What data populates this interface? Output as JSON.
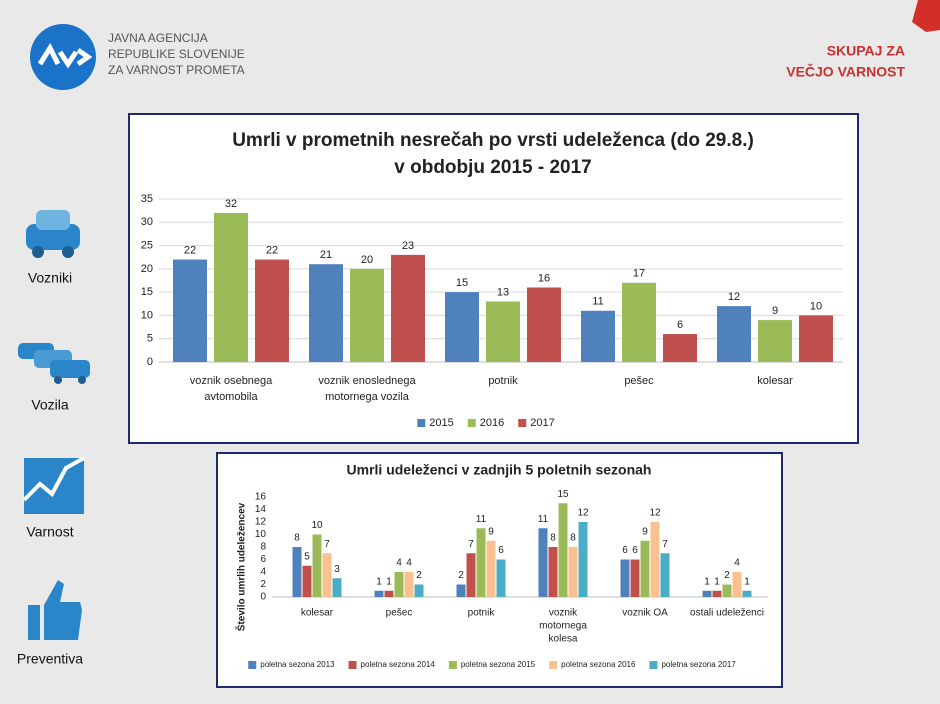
{
  "header": {
    "agency": [
      "JAVNA AGENCIJA",
      "REPUBLIKE SLOVENIJE",
      "ZA VARNOST PROMETA"
    ],
    "slogan": [
      "SKUPAJ ZA",
      "VEČJO VARNOST"
    ]
  },
  "sidebar": [
    "Vozniki",
    "Vozila",
    "Varnost",
    "Preventiva"
  ],
  "chart_data": [
    {
      "type": "bar",
      "title": [
        "Umrli v prometnih nesrečah po vrsti udeleženca (do 29.8.)",
        "v obdobju 2015 - 2017"
      ],
      "categories": [
        [
          "voznik osebnega",
          "avtomobila"
        ],
        [
          "voznik enoslednega",
          "motornega vozila"
        ],
        [
          "potnik"
        ],
        [
          "pešec"
        ],
        [
          "kolesar"
        ]
      ],
      "series": [
        {
          "name": "2015",
          "color": "#4f81bd",
          "values": [
            22,
            21,
            15,
            11,
            12
          ]
        },
        {
          "name": "2016",
          "color": "#9bbb59",
          "values": [
            32,
            20,
            13,
            17,
            9
          ]
        },
        {
          "name": "2017",
          "color": "#c0504d",
          "values": [
            22,
            23,
            16,
            6,
            10
          ]
        }
      ],
      "ylim": [
        0,
        35
      ],
      "yticks": [
        0,
        5,
        10,
        15,
        20,
        25,
        30,
        35
      ],
      "grid": true,
      "legend": "bottom"
    },
    {
      "type": "bar",
      "title": [
        "Umrli udeleženci v zadnjih 5 poletnih sezonah"
      ],
      "ylabel": "Število umrlih udeležencev",
      "categories": [
        [
          "kolesar"
        ],
        [
          "pešec"
        ],
        [
          "potnik"
        ],
        [
          "voznik",
          "motornega",
          "kolesa"
        ],
        [
          "voznik OA"
        ],
        [
          "ostali udeleženci"
        ]
      ],
      "series": [
        {
          "name": "poletna sezona 2013",
          "color": "#4f81bd",
          "values": [
            8,
            1,
            2,
            11,
            6,
            1
          ]
        },
        {
          "name": "poletna sezona 2014",
          "color": "#c0504d",
          "values": [
            5,
            1,
            7,
            8,
            6,
            1
          ]
        },
        {
          "name": "poletna sezona 2015",
          "color": "#9bbb59",
          "values": [
            10,
            4,
            11,
            15,
            9,
            2
          ]
        },
        {
          "name": "poletna sezona 2016",
          "color": "#fac090",
          "values": [
            7,
            4,
            9,
            8,
            12,
            4
          ]
        },
        {
          "name": "poletna sezona 2017",
          "color": "#4bacc6",
          "values": [
            3,
            2,
            6,
            12,
            7,
            1
          ]
        }
      ],
      "ylim": [
        0,
        16
      ],
      "yticks": [
        0,
        2,
        4,
        6,
        8,
        10,
        12,
        14,
        16
      ],
      "grid": false,
      "legend": "bottom"
    }
  ]
}
